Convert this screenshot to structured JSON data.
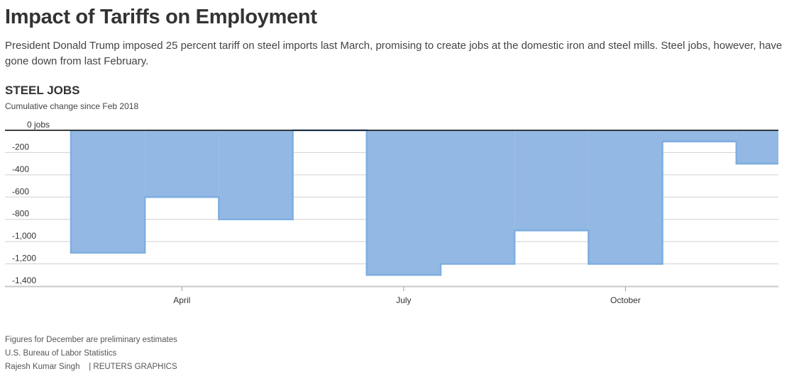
{
  "header": {
    "title": "Impact of Tariffs on Employment",
    "subtitle": "President Donald Trump imposed 25 percent tariff on steel imports last March, promising to create jobs at the domestic iron and steel mills. Steel jobs, however, have gone down from last February."
  },
  "chart_heading": "STEEL JOBS",
  "chart_subheading": "Cumulative change since Feb 2018",
  "chart_data": {
    "type": "area",
    "step": true,
    "x": [
      "2018-03",
      "2018-04",
      "2018-05",
      "2018-06",
      "2018-07",
      "2018-08",
      "2018-09",
      "2018-10",
      "2018-11",
      "2018-12"
    ],
    "values": [
      -1100,
      -600,
      -800,
      0,
      -1300,
      -1200,
      -900,
      -1200,
      -100,
      -300
    ],
    "ylabel": "",
    "xlabel": "",
    "ylim": [
      -1400,
      0
    ],
    "y_ticks": [
      0,
      -200,
      -400,
      -600,
      -800,
      -1000,
      -1200,
      -1400
    ],
    "y_tick_labels": [
      "0 jobs",
      "-200",
      "-400",
      "-600",
      "-800",
      "-1,000",
      "-1,200",
      "-1,400"
    ],
    "x_tick_labels": [
      {
        "label": "April",
        "month": "2018-04"
      },
      {
        "label": "July",
        "month": "2018-07"
      },
      {
        "label": "October",
        "month": "2018-10"
      }
    ],
    "grid": true,
    "fill_color": "#92b8e3",
    "line_color": "#7eaee0",
    "zero_line_color": "#000000"
  },
  "footer": {
    "note": "Figures for December are preliminary estimates",
    "source": "U.S. Bureau of Labor Statistics",
    "credit": "Rajesh Kumar Singh    | REUTERS GRAPHICS"
  }
}
